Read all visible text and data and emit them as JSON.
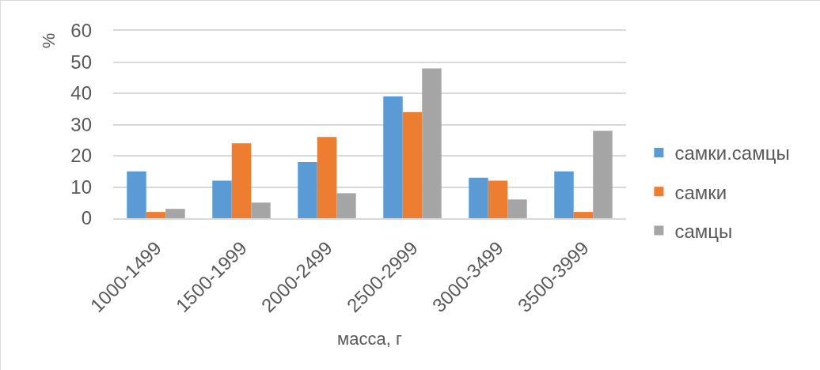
{
  "chart_data": {
    "type": "bar",
    "xlabel": "масса, г",
    "ylabel": "%",
    "categories": [
      "1000-1499",
      "1500-1999",
      "2000-2499",
      "2500-2999",
      "3000-3499",
      "3500-3999"
    ],
    "series": [
      {
        "name": "самки.самцы",
        "color": "#5b9bd5",
        "values": [
          15,
          12,
          18,
          39,
          13,
          15
        ]
      },
      {
        "name": "самки",
        "color": "#ed7d31",
        "values": [
          2,
          24,
          26,
          34,
          12,
          2
        ]
      },
      {
        "name": "самцы",
        "color": "#a5a5a5",
        "values": [
          3,
          5,
          8,
          48,
          6,
          28
        ]
      }
    ],
    "ylim": [
      0,
      60
    ],
    "yticks": [
      0,
      10,
      20,
      30,
      40,
      50,
      60
    ],
    "grid": "y",
    "legend": "right"
  }
}
